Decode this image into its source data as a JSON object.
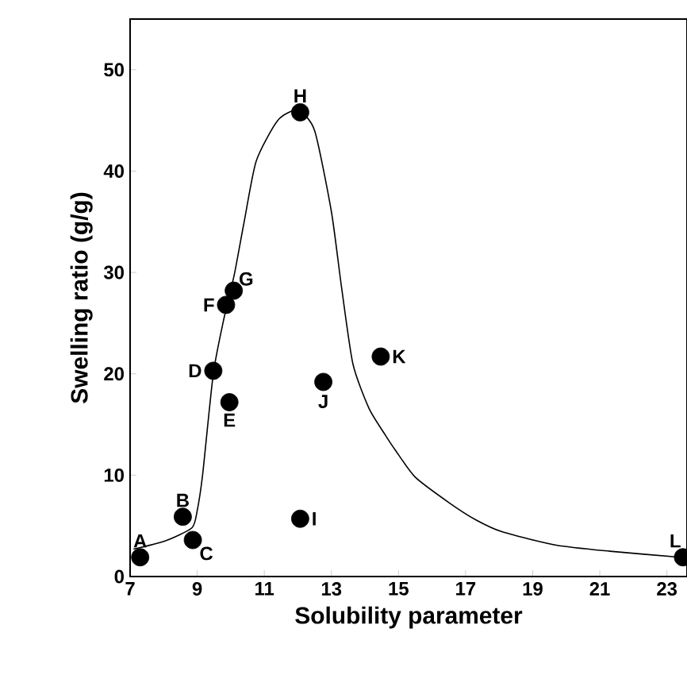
{
  "chart_data": {
    "type": "scatter",
    "xlabel": "Solubility parameter",
    "ylabel": "Swelling ratio (g/g)",
    "xlim": [
      7,
      23.6
    ],
    "xticks": [
      7,
      9,
      11,
      13,
      15,
      17,
      19,
      21,
      23
    ],
    "ylim": [
      0,
      55
    ],
    "yticks": [
      0,
      10,
      20,
      30,
      40,
      50
    ],
    "grid": false,
    "series": [
      {
        "color": "#000000",
        "marker": "circle",
        "x": [
          7.3,
          8.57,
          8.87,
          9.48,
          9.96,
          9.86,
          10.09,
          12.07,
          12.07,
          12.76,
          14.47,
          23.48
        ],
        "values": [
          1.9,
          5.9,
          3.6,
          20.3,
          17.2,
          26.8,
          28.2,
          45.8,
          5.7,
          19.2,
          21.7,
          1.9
        ]
      },
      {
        "type": "line",
        "color": "#000000",
        "marker": "none",
        "line_style": "solid",
        "x": [
          7.1,
          8.04,
          8.84,
          9.0,
          9.16,
          9.48,
          9.8,
          10.1,
          10.4,
          10.76,
          11.4,
          12.0,
          12.5,
          13.0,
          13.3,
          13.64,
          14.12,
          14.6,
          14.9,
          15.5,
          16.5,
          17.3,
          18.1,
          19.7,
          21.3,
          23.4
        ],
        "values": [
          2.7,
          3.5,
          4.8,
          6.5,
          10,
          20,
          25.5,
          29.7,
          35,
          41,
          45,
          46,
          44,
          36,
          28.6,
          21,
          16.6,
          14,
          12.5,
          9.8,
          7.3,
          5.6,
          4.4,
          3.1,
          2.5,
          1.9
        ]
      }
    ],
    "annotations": [
      {
        "text": "A",
        "x": 7.3,
        "y": 1.9
      },
      {
        "text": "B",
        "x": 8.57,
        "y": 5.9
      },
      {
        "text": "C",
        "x": 8.87,
        "y": 3.6
      },
      {
        "text": "D",
        "x": 9.48,
        "y": 20.3
      },
      {
        "text": "E",
        "x": 9.96,
        "y": 17.2
      },
      {
        "text": "F",
        "x": 9.86,
        "y": 26.8
      },
      {
        "text": "G",
        "x": 10.09,
        "y": 28.2
      },
      {
        "text": "H",
        "x": 12.07,
        "y": 45.8
      },
      {
        "text": "I",
        "x": 12.07,
        "y": 5.7
      },
      {
        "text": "J",
        "x": 12.76,
        "y": 19.2
      },
      {
        "text": "K",
        "x": 14.47,
        "y": 21.7
      },
      {
        "text": "L",
        "x": 23.48,
        "y": 1.9
      }
    ]
  }
}
